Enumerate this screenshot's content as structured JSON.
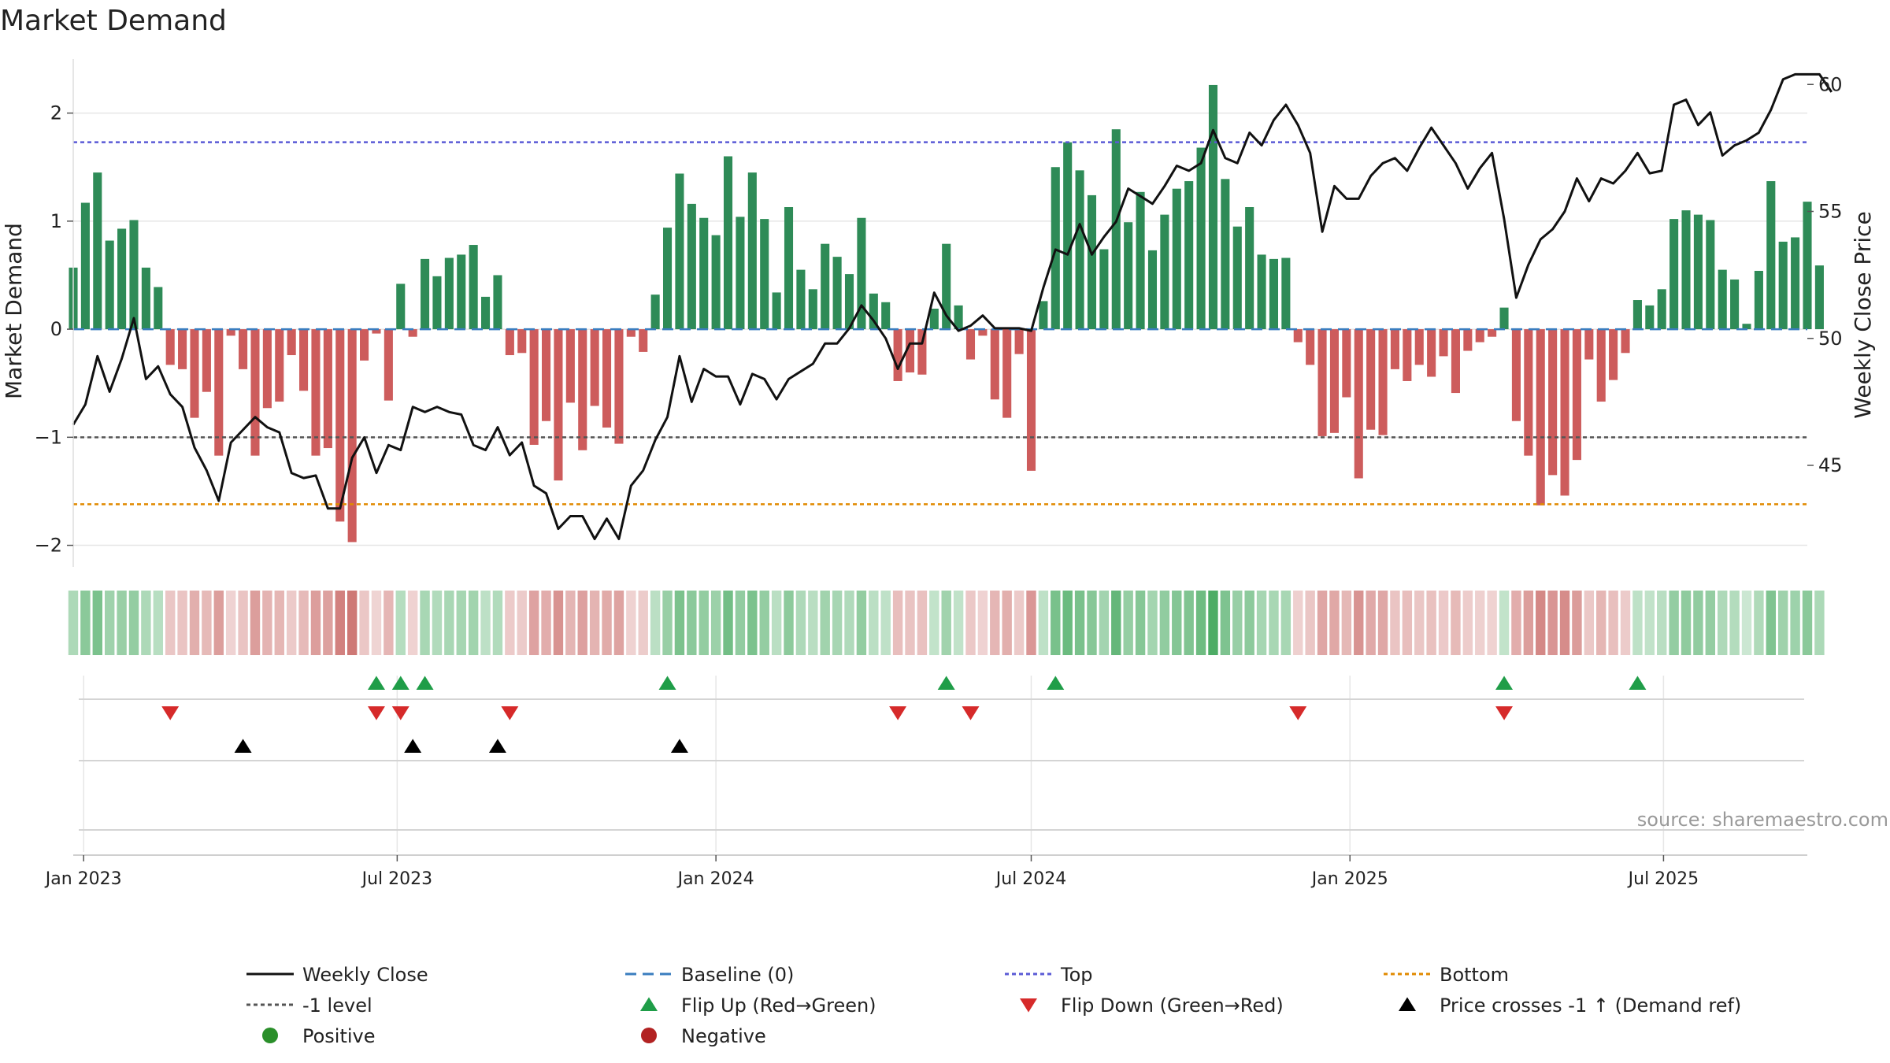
{
  "chart_data": {
    "type": "bar+line",
    "title": "Market Demand",
    "source": "source: sharemaestro.com",
    "y_left": {
      "label": "Market Demand",
      "range": [
        -2.2,
        2.5
      ],
      "ticks": [
        2,
        1,
        0,
        -1,
        -2
      ],
      "tick_labels": [
        "2",
        "1",
        "0",
        "−1",
        "−2"
      ]
    },
    "y_right": {
      "label": "Weekly Close Price",
      "range": [
        41,
        61
      ],
      "ticks": [
        60,
        55,
        50,
        45
      ],
      "tick_labels": [
        "60",
        "55",
        "50",
        "45"
      ]
    },
    "x_axis": {
      "start": "2022-12-26",
      "end": "2025-09-22",
      "ticks": [
        "2023-01-01",
        "2023-07-01",
        "2024-01-01",
        "2024-07-01",
        "2025-01-01",
        "2025-07-01"
      ],
      "tick_labels": [
        "Jan 2023",
        "Jul 2023",
        "Jan 2024",
        "Jul 2024",
        "Jan 2025",
        "Jul 2025"
      ]
    },
    "reference_lines": {
      "baseline": 0,
      "top": 1.73,
      "bottom": -1.62,
      "minus_one": -1
    },
    "weeks_start": "2022-12-26",
    "week_count": 144,
    "demand": [
      0.57,
      1.17,
      1.45,
      0.82,
      0.93,
      1.01,
      0.57,
      0.39,
      -0.33,
      -0.37,
      -0.82,
      -0.58,
      -1.17,
      -0.06,
      -0.37,
      -1.17,
      -0.73,
      -0.67,
      -0.24,
      -0.57,
      -1.17,
      -1.1,
      -1.78,
      -1.97,
      -0.29,
      -0.04,
      -0.66,
      0.42,
      -0.07,
      0.65,
      0.49,
      0.66,
      0.69,
      0.78,
      0.3,
      0.5,
      -0.24,
      -0.22,
      -1.07,
      -0.85,
      -1.4,
      -0.68,
      -1.12,
      -0.71,
      -0.91,
      -1.06,
      -0.07,
      -0.21,
      0.32,
      0.94,
      1.44,
      1.16,
      1.03,
      0.87,
      1.6,
      1.04,
      1.45,
      1.02,
      0.34,
      1.13,
      0.55,
      0.37,
      0.79,
      0.67,
      0.51,
      1.03,
      0.33,
      0.25,
      -0.48,
      -0.4,
      -0.42,
      0.19,
      0.79,
      0.22,
      -0.28,
      -0.06,
      -0.65,
      -0.82,
      -0.23,
      -1.31,
      0.26,
      1.5,
      1.73,
      1.47,
      1.24,
      0.74,
      1.85,
      0.99,
      1.27,
      0.73,
      1.06,
      1.3,
      1.37,
      1.68,
      2.26,
      1.39,
      0.95,
      1.13,
      0.69,
      0.65,
      0.66,
      -0.12,
      -0.33,
      -0.99,
      -0.96,
      -0.63,
      -1.38,
      -0.93,
      -0.98,
      -0.37,
      -0.48,
      -0.33,
      -0.44,
      -0.25,
      -0.59,
      -0.2,
      -0.12,
      -0.07,
      0.2,
      -0.85,
      -1.17,
      -1.63,
      -1.35,
      -1.54,
      -1.21,
      -0.28,
      -0.67,
      -0.47,
      -0.22,
      0.27,
      0.22,
      0.37,
      1.02,
      1.1,
      1.06,
      1.01,
      0.55,
      0.46,
      0.05,
      0.54,
      1.37,
      0.81,
      0.85,
      1.18,
      0.59
    ],
    "close": [
      46.6,
      47.4,
      49.3,
      47.9,
      49.2,
      50.8,
      48.4,
      48.9,
      47.8,
      47.3,
      45.7,
      44.8,
      43.6,
      45.9,
      46.4,
      46.9,
      46.5,
      46.3,
      44.7,
      44.5,
      44.6,
      43.3,
      43.3,
      45.3,
      46.1,
      44.7,
      45.8,
      45.6,
      47.3,
      47.1,
      47.3,
      47.1,
      47.0,
      45.8,
      45.6,
      46.5,
      45.4,
      45.9,
      44.2,
      43.9,
      42.5,
      43.0,
      43.0,
      42.1,
      42.9,
      42.1,
      44.2,
      44.8,
      46.0,
      46.9,
      49.3,
      47.5,
      48.8,
      48.5,
      48.5,
      47.4,
      48.6,
      48.4,
      47.6,
      48.4,
      48.7,
      49.0,
      49.8,
      49.8,
      50.4,
      51.3,
      50.7,
      50.0,
      48.8,
      49.8,
      49.8,
      51.8,
      50.9,
      50.3,
      50.5,
      50.9,
      50.4,
      50.4,
      50.4,
      50.3,
      52.0,
      53.5,
      53.3,
      54.5,
      53.3,
      54.0,
      54.6,
      55.9,
      55.6,
      55.3,
      56.0,
      56.8,
      56.6,
      56.9,
      58.2,
      57.1,
      56.9,
      58.1,
      57.6,
      58.6,
      59.2,
      58.4,
      57.3,
      54.2,
      56.0,
      55.5,
      55.5,
      56.4,
      56.9,
      57.1,
      56.6,
      57.5,
      58.3,
      57.6,
      56.9,
      55.9,
      56.7,
      57.3,
      54.7,
      51.6,
      52.9,
      53.9,
      54.3,
      55.0,
      56.3,
      55.4,
      56.3,
      56.1,
      56.6,
      57.3,
      56.5,
      56.6,
      59.2,
      59.4,
      58.4,
      58.9,
      57.2,
      57.6,
      57.8,
      58.1,
      59.0,
      60.2,
      60.4,
      60.4,
      60.4,
      59.7
    ],
    "heatmap_values_source": "demand",
    "flip_up_weeks": [
      25,
      27,
      29,
      49,
      72,
      81,
      118,
      129
    ],
    "flip_down_weeks": [
      8,
      25,
      27,
      36,
      68,
      74,
      101,
      118
    ],
    "price_cross_weeks": [
      14,
      28,
      35,
      50
    ],
    "colors": {
      "positive_bar": "#2e8b57",
      "negative_bar": "#cd5c5c",
      "close_line": "#111111",
      "baseline": "#3a7dbf",
      "top": "#5b5bd6",
      "bottom": "#e08a00",
      "minus_one": "#555555",
      "flip_up": "#1f9d48",
      "flip_down": "#d62a2a",
      "price_cross": "#000000",
      "positive_dot": "#2a8f2a",
      "negative_dot": "#b22222",
      "heat_positive": "#2e9e4a",
      "heat_negative": "#c0504d",
      "grid": "#e6e6e6"
    },
    "legend": [
      {
        "label": "Weekly Close",
        "marker": "line-solid",
        "color_key": "close_line"
      },
      {
        "label": "Baseline (0)",
        "marker": "line-dashed",
        "color_key": "baseline"
      },
      {
        "label": "Top",
        "marker": "line-dotted",
        "color_key": "top"
      },
      {
        "label": "Bottom",
        "marker": "line-dotted",
        "color_key": "bottom"
      },
      {
        "label": "-1 level",
        "marker": "line-dotted",
        "color_key": "minus_one"
      },
      {
        "label": "Flip Up (Red→Green)",
        "marker": "triangle-up",
        "color_key": "flip_up"
      },
      {
        "label": "Flip Down (Green→Red)",
        "marker": "triangle-down",
        "color_key": "flip_down"
      },
      {
        "label": "Price crosses -1 ↑ (Demand ref)",
        "marker": "triangle-up",
        "color_key": "price_cross"
      },
      {
        "label": "Positive",
        "marker": "dot",
        "color_key": "positive_dot"
      },
      {
        "label": "Negative",
        "marker": "dot",
        "color_key": "negative_dot"
      }
    ]
  }
}
